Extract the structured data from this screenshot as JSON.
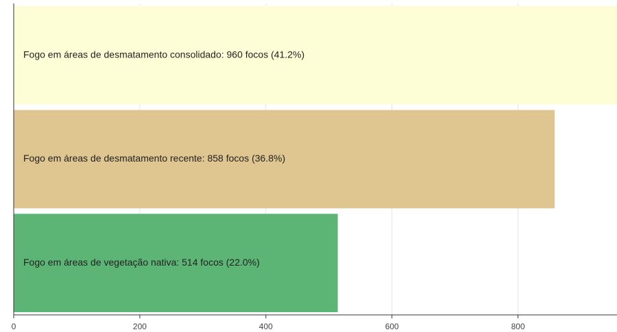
{
  "chart_data": {
    "type": "bar",
    "orientation": "horizontal",
    "values": [
      960,
      858,
      514
    ],
    "value_labels": [
      "Fogo em áreas de desmatamento consolidado: 960 focos (41.2%)",
      "Fogo em áreas de desmatamento recente: 858 focos (36.8%)",
      "Fogo em áreas de vegetação nativa: 514 focos (22.0%)"
    ],
    "colors": [
      "#fefed6",
      "#dfc58f",
      "#5cb575"
    ],
    "xlim": [
      0,
      957
    ],
    "xticks": [
      0,
      200,
      400,
      600,
      800
    ],
    "grid": true
  }
}
